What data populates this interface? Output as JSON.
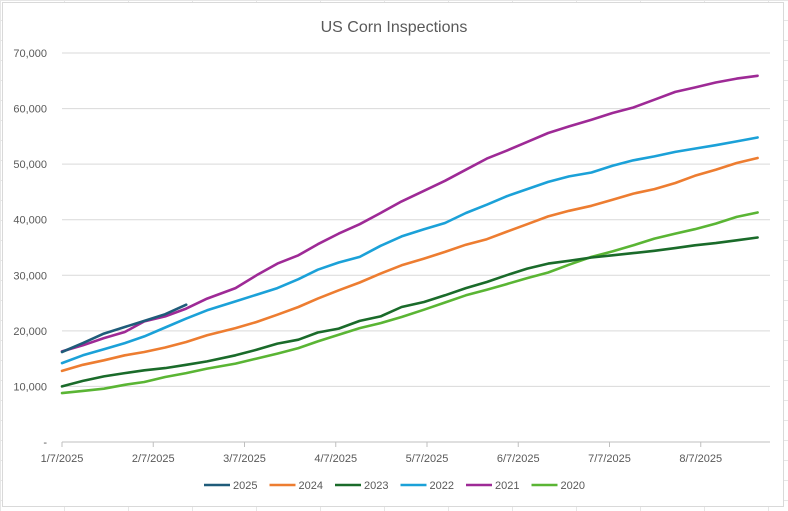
{
  "chart_data": {
    "type": "line",
    "title": "US Corn Inspections",
    "xlabel": "",
    "ylabel": "",
    "x_ticks": [
      "1/7/2025",
      "2/7/2025",
      "3/7/2025",
      "4/7/2025",
      "5/7/2025",
      "6/7/2025",
      "7/7/2025",
      "8/7/2025"
    ],
    "y_ticks": [
      "-",
      "10,000",
      "20,000",
      "30,000",
      "40,000",
      "50,000",
      "60,000",
      "70,000"
    ],
    "ylim": [
      0,
      70000
    ],
    "x_week_range": [
      0,
      35
    ],
    "grid": "horizontal",
    "legend_position": "bottom",
    "series": [
      {
        "name": "2025",
        "color": "#1f5c7a",
        "x": [
          "2025-01-07",
          "2025-01-14",
          "2025-01-21",
          "2025-01-28",
          "2025-02-04",
          "2025-02-11",
          "2025-02-18"
        ],
        "values": [
          16200,
          17800,
          19500,
          20700,
          21800,
          23000,
          24700
        ]
      },
      {
        "name": "2024",
        "color": "#ed7d31",
        "x": [
          "2025-01-07",
          "2025-01-14",
          "2025-01-21",
          "2025-01-28",
          "2025-02-04",
          "2025-02-11",
          "2025-02-18",
          "2025-02-25",
          "2025-03-04",
          "2025-03-11",
          "2025-03-18",
          "2025-03-25",
          "2025-04-01",
          "2025-04-08",
          "2025-04-15",
          "2025-04-22",
          "2025-04-29",
          "2025-05-06",
          "2025-05-13",
          "2025-05-20",
          "2025-05-27",
          "2025-06-03",
          "2025-06-10",
          "2025-06-17",
          "2025-06-24",
          "2025-07-01",
          "2025-07-08",
          "2025-07-15",
          "2025-07-22",
          "2025-07-29",
          "2025-08-05",
          "2025-08-12",
          "2025-08-19",
          "2025-08-26",
          "2025-09-02",
          "2025-09-09"
        ],
        "values": [
          12800,
          13900,
          14700,
          15600,
          16200,
          17000,
          18000,
          19200,
          20500,
          21600,
          22900,
          24300,
          25800,
          27300,
          28700,
          30300,
          31800,
          33000,
          34200,
          35500,
          36500,
          37800,
          39200,
          40600,
          41600,
          42500,
          43600,
          44700,
          45500,
          46600,
          47900,
          49000,
          50200,
          51100,
          52000,
          52900
        ]
      },
      {
        "name": "2023",
        "color": "#1a6b2a",
        "x": [
          "2025-01-07",
          "2025-01-14",
          "2025-01-21",
          "2025-01-28",
          "2025-02-04",
          "2025-02-11",
          "2025-02-18",
          "2025-02-25",
          "2025-03-04",
          "2025-03-11",
          "2025-03-18",
          "2025-03-25",
          "2025-04-01",
          "2025-04-08",
          "2025-04-15",
          "2025-04-22",
          "2025-04-29",
          "2025-05-06",
          "2025-05-13",
          "2025-05-20",
          "2025-05-27",
          "2025-06-03",
          "2025-06-10",
          "2025-06-17",
          "2025-06-24",
          "2025-07-01",
          "2025-07-08",
          "2025-07-15",
          "2025-07-22",
          "2025-07-29",
          "2025-08-05",
          "2025-08-12",
          "2025-08-19",
          "2025-08-26",
          "2025-09-02",
          "2025-09-09"
        ],
        "values": [
          10000,
          11000,
          11800,
          12400,
          12900,
          13300,
          13900,
          14500,
          15600,
          16600,
          17700,
          18400,
          19700,
          20400,
          21800,
          22600,
          24300,
          25200,
          26400,
          27700,
          28800,
          30000,
          31200,
          32100,
          32600,
          33200,
          33600,
          34000,
          34400,
          34900,
          35400,
          35800,
          36300,
          36800,
          37200,
          37600
        ]
      },
      {
        "name": "2022",
        "color": "#1ba1d8",
        "x": [
          "2025-01-07",
          "2025-01-14",
          "2025-01-21",
          "2025-01-28",
          "2025-02-04",
          "2025-02-11",
          "2025-02-18",
          "2025-02-25",
          "2025-03-04",
          "2025-03-11",
          "2025-03-18",
          "2025-03-25",
          "2025-04-01",
          "2025-04-08",
          "2025-04-15",
          "2025-04-22",
          "2025-04-29",
          "2025-05-06",
          "2025-05-13",
          "2025-05-20",
          "2025-05-27",
          "2025-06-03",
          "2025-06-10",
          "2025-06-17",
          "2025-06-24",
          "2025-07-01",
          "2025-07-08",
          "2025-07-15",
          "2025-07-22",
          "2025-07-29",
          "2025-08-05",
          "2025-08-12",
          "2025-08-19",
          "2025-08-26",
          "2025-09-02",
          "2025-09-09"
        ],
        "values": [
          14200,
          15600,
          16700,
          17800,
          19000,
          20600,
          22200,
          23700,
          25300,
          26500,
          27700,
          29300,
          31000,
          32300,
          33300,
          35300,
          37000,
          38300,
          39400,
          41200,
          42700,
          44200,
          45500,
          46800,
          47800,
          48500,
          49700,
          50700,
          51400,
          52200,
          52800,
          53400,
          54100,
          54800,
          55400,
          56000
        ]
      },
      {
        "name": "2021",
        "color": "#9e2a96",
        "x": [
          "2025-01-07",
          "2025-01-14",
          "2025-01-21",
          "2025-01-28",
          "2025-02-04",
          "2025-02-11",
          "2025-02-18",
          "2025-02-25",
          "2025-03-04",
          "2025-03-11",
          "2025-03-18",
          "2025-03-25",
          "2025-04-01",
          "2025-04-08",
          "2025-04-15",
          "2025-04-22",
          "2025-04-29",
          "2025-05-06",
          "2025-05-13",
          "2025-05-20",
          "2025-05-27",
          "2025-06-03",
          "2025-06-10",
          "2025-06-17",
          "2025-06-24",
          "2025-07-01",
          "2025-07-08",
          "2025-07-15",
          "2025-07-22",
          "2025-07-29",
          "2025-08-05",
          "2025-08-12",
          "2025-08-19",
          "2025-08-26",
          "2025-09-02",
          "2025-09-09"
        ],
        "values": [
          16300,
          17400,
          18700,
          19800,
          21700,
          22600,
          24000,
          25800,
          27700,
          30000,
          32100,
          33600,
          35600,
          37500,
          39200,
          41200,
          43300,
          45200,
          47000,
          49000,
          51000,
          52400,
          54000,
          55600,
          56800,
          58000,
          59200,
          60200,
          61600,
          63000,
          63800,
          64700,
          65400,
          65900,
          66300,
          66700
        ]
      },
      {
        "name": "2020",
        "color": "#5ab534",
        "x": [
          "2025-01-07",
          "2025-01-14",
          "2025-01-21",
          "2025-01-28",
          "2025-02-04",
          "2025-02-11",
          "2025-02-18",
          "2025-02-25",
          "2025-03-04",
          "2025-03-11",
          "2025-03-18",
          "2025-03-25",
          "2025-04-01",
          "2025-04-08",
          "2025-04-15",
          "2025-04-22",
          "2025-04-29",
          "2025-05-06",
          "2025-05-13",
          "2025-05-20",
          "2025-05-27",
          "2025-06-03",
          "2025-06-10",
          "2025-06-17",
          "2025-06-24",
          "2025-07-01",
          "2025-07-08",
          "2025-07-15",
          "2025-07-22",
          "2025-07-29",
          "2025-08-05",
          "2025-08-12",
          "2025-08-19",
          "2025-08-26",
          "2025-09-02",
          "2025-09-09"
        ],
        "values": [
          8800,
          9200,
          9600,
          10300,
          10800,
          11700,
          12400,
          13200,
          14100,
          15000,
          15900,
          16900,
          18100,
          19300,
          20500,
          21400,
          22500,
          23800,
          25100,
          26400,
          27400,
          28400,
          29500,
          30500,
          31900,
          33300,
          34300,
          35400,
          36600,
          37500,
          38300,
          39300,
          40500,
          41300,
          42000,
          42800
        ]
      }
    ]
  }
}
